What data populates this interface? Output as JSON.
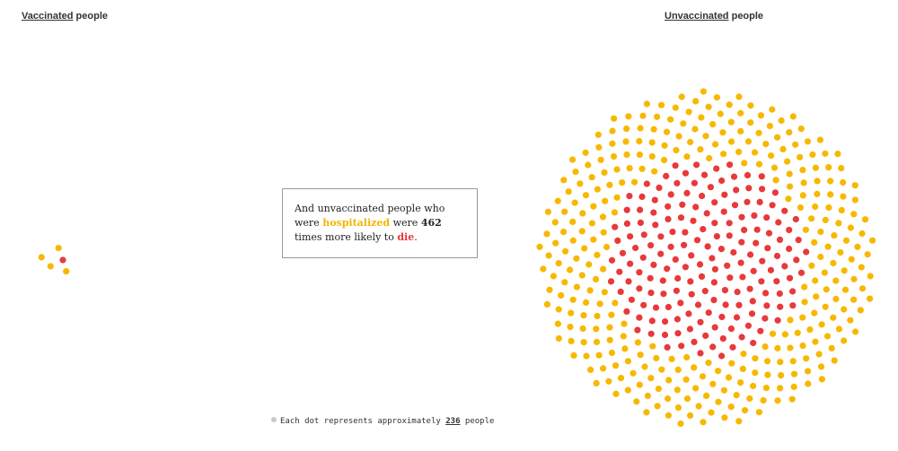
{
  "labels": {
    "vaccinated": {
      "group": "Vaccinated",
      "suffix": "people"
    },
    "unvaccinated": {
      "group": "Unvaccinated",
      "suffix": "people"
    }
  },
  "callout": {
    "text_1": "And unvaccinated people who were",
    "hospitalized": "hospitalized",
    "text_2": "were",
    "multiplier": "462",
    "text_3": "times more likely to",
    "die": "die",
    "text_4": "."
  },
  "legend": {
    "text_1": "Each dot represents approximately",
    "people_per_dot": "236",
    "text_2": "people"
  },
  "colors": {
    "hospitalized": "#f7b800",
    "died": "#e8393b",
    "legend_dot": "#c9c9c9"
  },
  "chart_data": {
    "type": "dot-cluster",
    "people_per_dot": 236,
    "groups": [
      {
        "name": "Vaccinated",
        "hospitalized_dots": 4,
        "died_dots": 1
      },
      {
        "name": "Unvaccinated",
        "hospitalized_dots": 330,
        "died_dots": 180
      }
    ]
  }
}
